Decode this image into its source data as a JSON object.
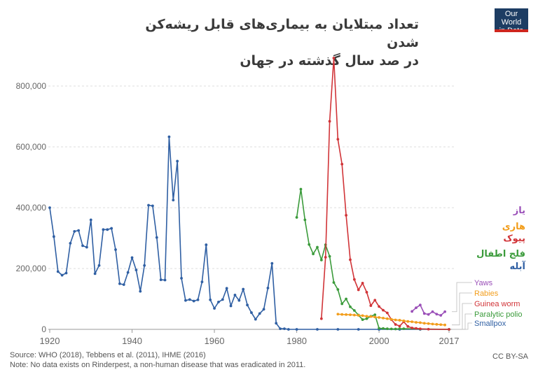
{
  "title_line1": "تعداد مبتلایان به بیماری‌های قابل ریشه‌کن شدن",
  "title_line2": "در صد سال گذشته در جهان",
  "logo_line1": "Our World",
  "logo_line2": "in Data",
  "source": "Source: WHO (2018), Tebbens et al. (2011), IHME (2016)",
  "note": "Note: No data exists on Rinderpest, a non-human disease that was eradicated in 2011.",
  "license": "CC BY-SA",
  "chart_data": {
    "type": "line",
    "title": "تعداد مبتلایان به بیماری‌های قابل ریشه‌کن شدن در صد سال گذشته در جهان",
    "xlim": [
      1920,
      2017
    ],
    "ylim": [
      0,
      900000
    ],
    "x_ticks": [
      "1920",
      "1940",
      "1960",
      "1980",
      "2000",
      "2017"
    ],
    "y_ticks": [
      "0",
      "200,000",
      "400,000",
      "600,000",
      "800,000"
    ],
    "grid": "horizontal dashed",
    "legend_persian": [
      {
        "label": "یاز",
        "color": "#9a4fb8"
      },
      {
        "label": "هاری",
        "color": "#f29d1b"
      },
      {
        "label": "پیوک",
        "color": "#d13438"
      },
      {
        "label": "فلج اطفال",
        "color": "#3b9b3b"
      },
      {
        "label": "آبله",
        "color": "#2f5fa3"
      }
    ],
    "series": [
      {
        "name": "Smallpox",
        "color": "#2f5fa3",
        "x": [
          1920,
          1921,
          1922,
          1923,
          1924,
          1925,
          1926,
          1927,
          1928,
          1929,
          1930,
          1931,
          1932,
          1933,
          1934,
          1935,
          1936,
          1937,
          1938,
          1939,
          1940,
          1941,
          1942,
          1943,
          1944,
          1945,
          1946,
          1947,
          1948,
          1949,
          1950,
          1951,
          1952,
          1953,
          1954,
          1955,
          1956,
          1957,
          1958,
          1959,
          1960,
          1961,
          1962,
          1963,
          1964,
          1965,
          1966,
          1967,
          1968,
          1969,
          1970,
          1971,
          1972,
          1973,
          1974,
          1975,
          1976,
          1977,
          1978,
          1980,
          1985,
          1990,
          1995,
          2000,
          2005,
          2010,
          2017
        ],
        "y": [
          400000,
          305000,
          190000,
          178000,
          185000,
          283000,
          322000,
          325000,
          275000,
          270000,
          360000,
          183000,
          210000,
          328000,
          328000,
          332000,
          262000,
          150000,
          147000,
          187000,
          236000,
          195000,
          125000,
          210000,
          408000,
          406000,
          302000,
          163000,
          162000,
          633000,
          425000,
          553000,
          168000,
          95000,
          98000,
          93000,
          97000,
          156000,
          278000,
          97000,
          69000,
          90000,
          98000,
          135000,
          77000,
          113000,
          95000,
          132000,
          80000,
          55000,
          33000,
          52000,
          66000,
          136000,
          217000,
          20000,
          2000,
          2000,
          0,
          0,
          0,
          0,
          0,
          0,
          0,
          0,
          0
        ]
      },
      {
        "name": "Paralytic polio",
        "color": "#3b9b3b",
        "x": [
          1980,
          1981,
          1982,
          1983,
          1984,
          1985,
          1986,
          1987,
          1988,
          1989,
          1990,
          1991,
          1992,
          1993,
          1994,
          1995,
          1996,
          1997,
          1998,
          1999,
          2000,
          2001,
          2002,
          2003,
          2004,
          2005,
          2006,
          2010,
          2017
        ],
        "y": [
          368000,
          461000,
          360000,
          279000,
          248000,
          270000,
          228000,
          278000,
          240000,
          154000,
          131000,
          84000,
          100000,
          74000,
          62000,
          47000,
          32000,
          35000,
          43000,
          48000,
          3500,
          2800,
          1900,
          1500,
          1200,
          1900,
          2000,
          1300,
          30
        ]
      },
      {
        "name": "Guinea worm",
        "color": "#d13438",
        "x": [
          1986,
          1987,
          1988,
          1989,
          1990,
          1991,
          1992,
          1993,
          1994,
          1995,
          1996,
          1997,
          1998,
          1999,
          2000,
          2001,
          2002,
          2003,
          2004,
          2005,
          2006,
          2007,
          2008,
          2009,
          2010,
          2012,
          2017
        ],
        "y": [
          35000,
          237000,
          684000,
          892000,
          625000,
          543000,
          375000,
          229000,
          164000,
          130000,
          152000,
          122000,
          78000,
          96000,
          75000,
          63000,
          54000,
          32000,
          16000,
          10700,
          25000,
          9600,
          4600,
          3200,
          1800,
          550,
          30
        ]
      },
      {
        "name": "Rabies",
        "color": "#f29d1b",
        "x": [
          1990,
          1991,
          1992,
          1993,
          1994,
          1995,
          1996,
          1997,
          1998,
          1999,
          2000,
          2001,
          2002,
          2003,
          2004,
          2005,
          2006,
          2007,
          2008,
          2009,
          2010,
          2011,
          2012,
          2013,
          2014,
          2015,
          2016
        ],
        "y": [
          50000,
          49000,
          48500,
          48000,
          47000,
          46000,
          45000,
          43000,
          42000,
          40500,
          39000,
          37000,
          35000,
          33000,
          31000,
          30000,
          28000,
          26000,
          25000,
          23000,
          22000,
          20000,
          19000,
          17500,
          16500,
          15500,
          14500
        ]
      },
      {
        "name": "Yaws",
        "color": "#9a4fb8",
        "x": [
          2008,
          2009,
          2010,
          2011,
          2012,
          2013,
          2014,
          2015,
          2016
        ],
        "y": [
          59000,
          71000,
          80000,
          52000,
          49000,
          58000,
          50000,
          46000,
          58000
        ]
      }
    ]
  }
}
